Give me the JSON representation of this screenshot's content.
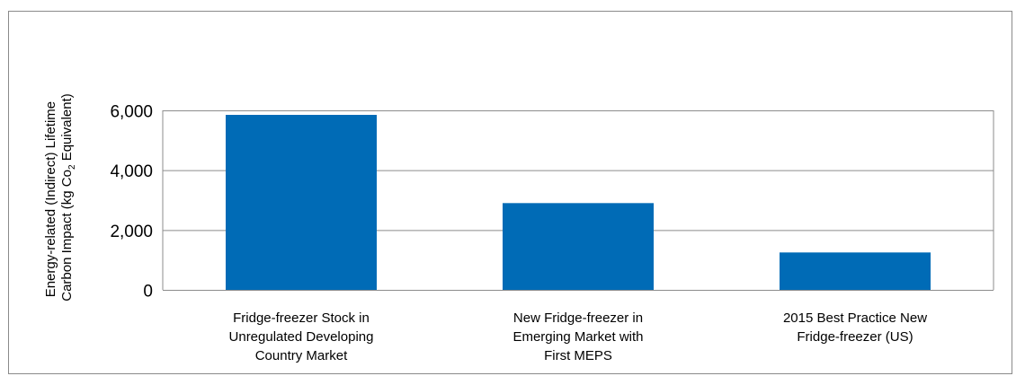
{
  "chart_data": {
    "type": "bar",
    "categories": [
      [
        "Fridge-freezer Stock in",
        "Unregulated Developing",
        "Country Market"
      ],
      [
        "New Fridge-freezer in",
        "Emerging Market with",
        "First MEPS"
      ],
      [
        "2015 Best Practice New",
        "Fridge-freezer (US)"
      ]
    ],
    "values": [
      5850,
      2900,
      1250
    ],
    "ylabel": {
      "line1": "Energy-related (Indirect) Lifetime",
      "line2_prefix": "Carbon Impact (kg Co",
      "line2_sub": "2",
      "line2_suffix": " Equivalent)"
    },
    "yticks": [
      0,
      2000,
      4000,
      6000
    ],
    "ytick_labels": [
      "0",
      "2,000",
      "4,000",
      "6,000"
    ],
    "ylim": [
      0,
      6000
    ],
    "grid": true,
    "bar_color": "#006bb6",
    "grid_color": "#8c8c8c"
  }
}
